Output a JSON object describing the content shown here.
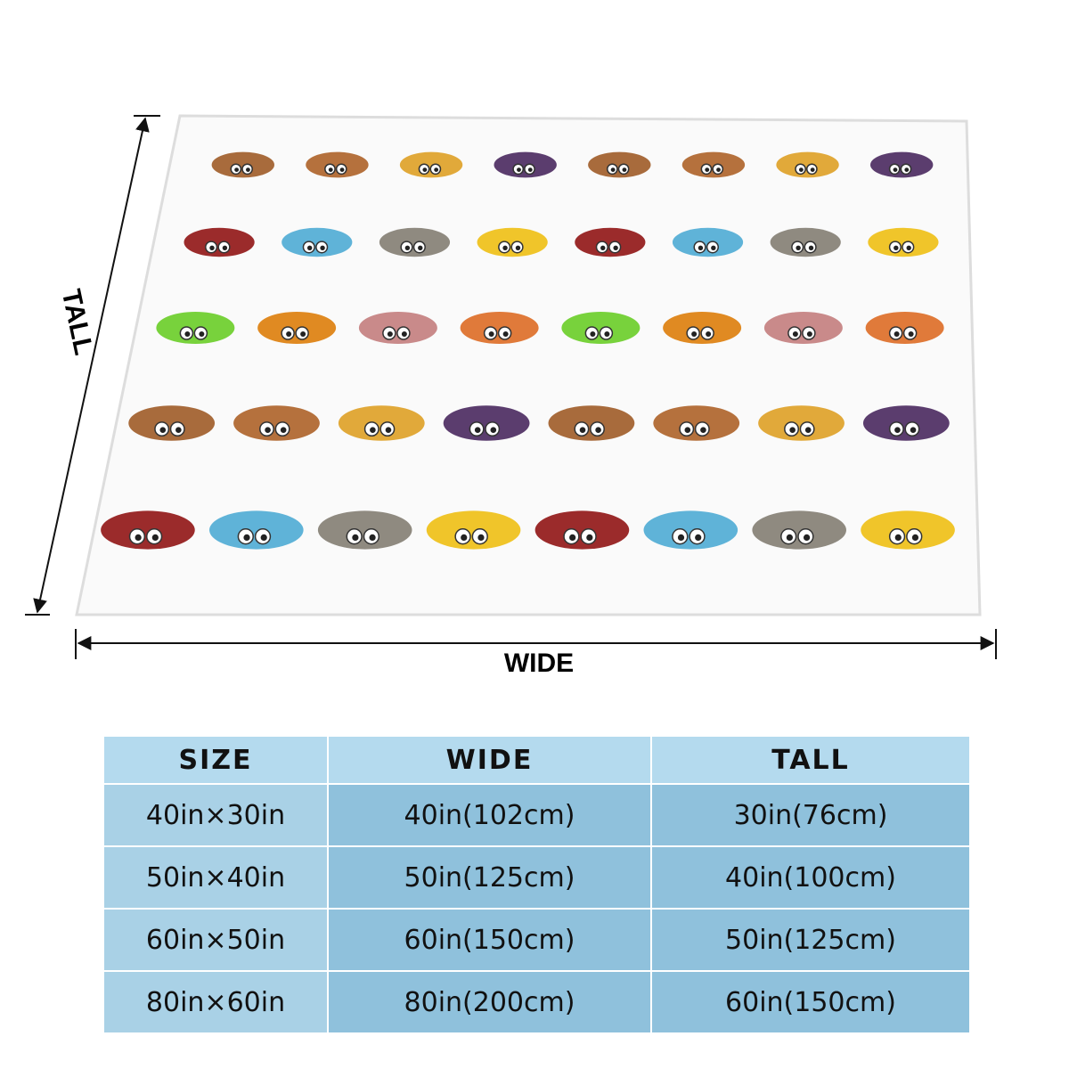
{
  "diagram": {
    "height_label": "TALL",
    "width_label": "WIDE"
  },
  "table": {
    "header": [
      "SIZE",
      "WIDE",
      "TALL"
    ],
    "rows": [
      [
        "40in×30in",
        "40in(102cm)",
        "30in(76cm)"
      ],
      [
        "50in×40in",
        "50in(125cm)",
        "40in(100cm)"
      ],
      [
        "60in×50in",
        "60in(150cm)",
        "50in(125cm)"
      ],
      [
        "80in×60in",
        "80in(200cm)",
        "60in(150cm)"
      ]
    ]
  }
}
